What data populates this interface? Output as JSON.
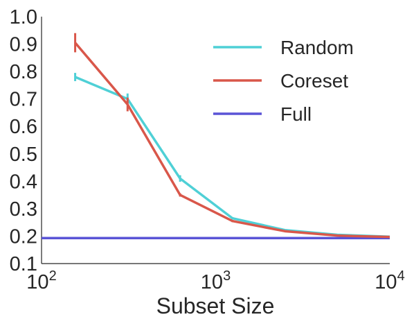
{
  "chart_data": {
    "type": "line",
    "xscale": "log",
    "xlim": [
      100,
      10000
    ],
    "ylim": [
      0.1,
      1.0
    ],
    "xlabel": "Subset Size",
    "ylabel": "",
    "x_ticks": [
      {
        "value": 100,
        "base": "10",
        "exp": "2"
      },
      {
        "value": 1000,
        "base": "10",
        "exp": "3"
      },
      {
        "value": 10000,
        "base": "10",
        "exp": "4"
      }
    ],
    "y_ticks": [
      "0.1",
      "0.2",
      "0.3",
      "0.4",
      "0.5",
      "0.6",
      "0.7",
      "0.8",
      "0.9",
      "1.0"
    ],
    "grid": false,
    "legend_position": "top-right",
    "series": [
      {
        "name": "Random",
        "color": "#4fd0d6",
        "x": [
          156,
          312,
          625,
          1250,
          2500,
          5000,
          10000
        ],
        "y": [
          0.78,
          0.7,
          0.41,
          0.265,
          0.222,
          0.205,
          0.198
        ],
        "err": [
          0.015,
          0.02,
          0.012,
          0.004,
          0.003,
          0.002,
          0.001
        ]
      },
      {
        "name": "Coreset",
        "color": "#d9574a",
        "x": [
          156,
          312,
          625,
          1250,
          2500,
          5000,
          10000
        ],
        "y": [
          0.905,
          0.68,
          0.35,
          0.255,
          0.218,
          0.202,
          0.197
        ],
        "err": [
          0.035,
          0.025,
          0.006,
          0.004,
          0.003,
          0.002,
          0.001
        ]
      },
      {
        "name": "Full",
        "color": "#5a54d6",
        "x": [
          100,
          10000
        ],
        "y": [
          0.193,
          0.193
        ],
        "err": [
          0,
          0
        ]
      }
    ]
  }
}
